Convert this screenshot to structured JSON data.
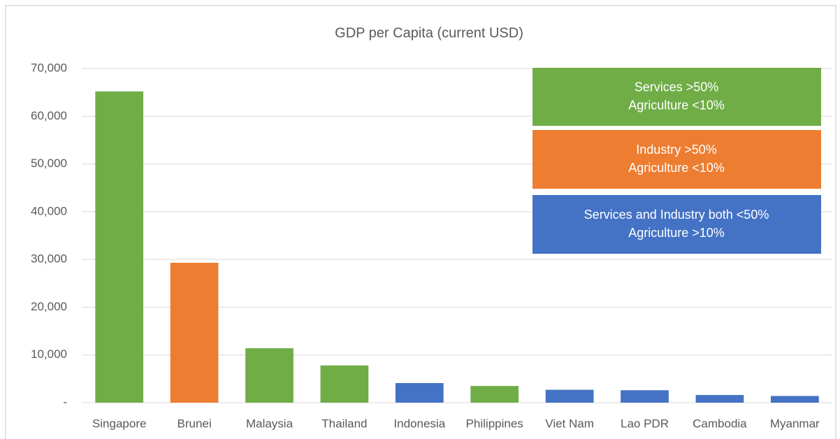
{
  "chart_data": {
    "type": "bar",
    "title": "GDP per  Capita (current USD)",
    "categories": [
      "Singapore",
      "Brunei",
      "Malaysia",
      "Thailand",
      "Indonesia",
      "Philippines",
      "Viet Nam",
      "Lao PDR",
      "Cambodia",
      "Myanmar"
    ],
    "values": [
      65200,
      29300,
      11400,
      7800,
      4100,
      3500,
      2700,
      2600,
      1600,
      1400
    ],
    "colors": [
      "#70ad47",
      "#ed7d31",
      "#70ad47",
      "#70ad47",
      "#4472c4",
      "#70ad47",
      "#4472c4",
      "#4472c4",
      "#4472c4",
      "#4472c4"
    ],
    "ylim": [
      0,
      70000
    ],
    "yticks": [
      {
        "value": 0,
        "label": "-"
      },
      {
        "value": 10000,
        "label": "10,000"
      },
      {
        "value": 20000,
        "label": "20,000"
      },
      {
        "value": 30000,
        "label": "30,000"
      },
      {
        "value": 40000,
        "label": "40,000"
      },
      {
        "value": 50000,
        "label": "50,000"
      },
      {
        "value": 60000,
        "label": "60,000"
      },
      {
        "value": 70000,
        "label": "70,000"
      }
    ],
    "grid": true,
    "legend": [
      {
        "color": "#70ad47",
        "lines": [
          "Services >50%",
          "Agriculture <10%"
        ]
      },
      {
        "color": "#ed7d31",
        "lines": [
          "Industry >50%",
          "Agriculture <10%"
        ]
      },
      {
        "color": "#4472c4",
        "lines": [
          "Services and Industry both <50%",
          "Agriculture >10%"
        ]
      }
    ]
  }
}
